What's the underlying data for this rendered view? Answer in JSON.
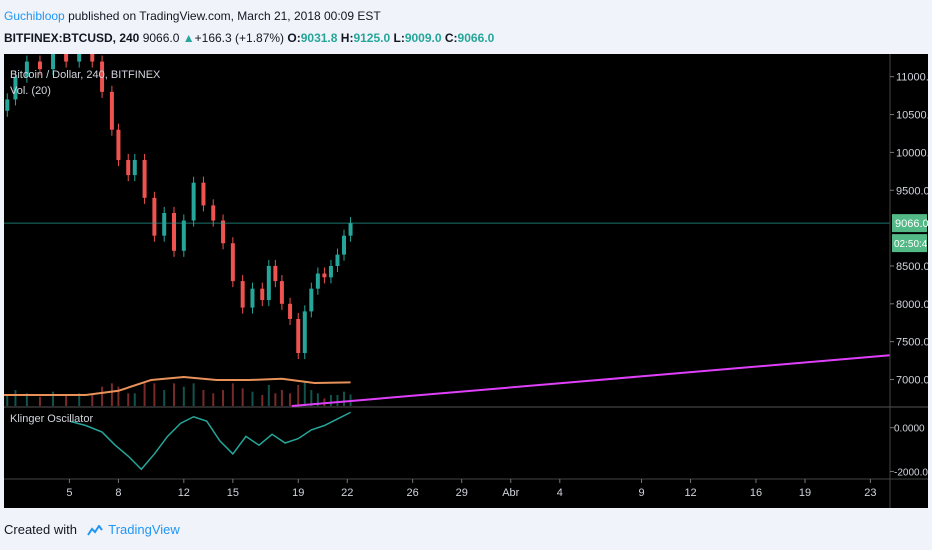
{
  "header": {
    "author": "Guchibloop",
    "published_text": "published on TradingView.com, March 21, 2018 00:09 EST",
    "symbol": "BITFINEX:BTCUSD, 240",
    "last": "9066.0",
    "change_arrow": "▲",
    "change": "+166.3 (+1.87%)",
    "o_label": "O:",
    "o": "9031.8",
    "h_label": "H:",
    "h": "9125.0",
    "l_label": "L:",
    "l": "9009.0",
    "c_label": "C:",
    "c": "9066.0"
  },
  "chart_data": [
    {
      "type": "candlestick",
      "title": "Bitcoin / Dollar, 240, BITFINEX",
      "indicator_label": "Vol. (20)",
      "y_ticks": [
        7000,
        7500,
        8000,
        8500,
        9000,
        9500,
        10000,
        10500,
        11000
      ],
      "y_tick_labels": [
        "7000.0",
        "7500.0",
        "8000.0",
        "8500.0",
        "9000.0",
        "9500.0",
        "10000.0",
        "10500.0",
        "11000.0"
      ],
      "ylim": [
        6650,
        11300
      ],
      "last_price": 9066.0,
      "last_price_label": "9066.0",
      "countdown_label": "02:50:47",
      "x_tick_labels": [
        "5",
        "8",
        "12",
        "15",
        "19",
        "22",
        "26",
        "29",
        "Abr",
        "4",
        "9",
        "12",
        "16",
        "19",
        "23"
      ],
      "x_tick_days": [
        5,
        8,
        12,
        15,
        19,
        22,
        26,
        29,
        32,
        35,
        40,
        43,
        47,
        50,
        54
      ],
      "xlim_days": [
        1.0,
        55.2
      ],
      "closes": [
        {
          "day": 1.2,
          "close": 10700
        },
        {
          "day": 1.7,
          "close": 11000
        },
        {
          "day": 2.4,
          "close": 11200
        },
        {
          "day": 3.2,
          "close": 11100
        },
        {
          "day": 4.0,
          "close": 11350
        },
        {
          "day": 4.8,
          "close": 11200
        },
        {
          "day": 5.6,
          "close": 11400
        },
        {
          "day": 6.4,
          "close": 11200
        },
        {
          "day": 7.0,
          "close": 10800
        },
        {
          "day": 7.6,
          "close": 10300
        },
        {
          "day": 8.0,
          "close": 9900
        },
        {
          "day": 8.6,
          "close": 9700
        },
        {
          "day": 9.0,
          "close": 9900
        },
        {
          "day": 9.6,
          "close": 9400
        },
        {
          "day": 10.2,
          "close": 8900
        },
        {
          "day": 10.8,
          "close": 9200
        },
        {
          "day": 11.4,
          "close": 8700
        },
        {
          "day": 12.0,
          "close": 9100
        },
        {
          "day": 12.6,
          "close": 9600
        },
        {
          "day": 13.2,
          "close": 9300
        },
        {
          "day": 13.8,
          "close": 9100
        },
        {
          "day": 14.4,
          "close": 8800
        },
        {
          "day": 15.0,
          "close": 8300
        },
        {
          "day": 15.6,
          "close": 7950
        },
        {
          "day": 16.2,
          "close": 8200
        },
        {
          "day": 16.8,
          "close": 8050
        },
        {
          "day": 17.2,
          "close": 8500
        },
        {
          "day": 17.6,
          "close": 8300
        },
        {
          "day": 18.0,
          "close": 8000
        },
        {
          "day": 18.5,
          "close": 7800
        },
        {
          "day": 19.0,
          "close": 7350
        },
        {
          "day": 19.4,
          "close": 7900
        },
        {
          "day": 19.8,
          "close": 8200
        },
        {
          "day": 20.2,
          "close": 8400
        },
        {
          "day": 20.6,
          "close": 8350
        },
        {
          "day": 21.0,
          "close": 8500
        },
        {
          "day": 21.4,
          "close": 8650
        },
        {
          "day": 21.8,
          "close": 8900
        },
        {
          "day": 22.2,
          "close": 9066
        }
      ],
      "volume_ma": [
        {
          "day": 1.0,
          "value": 0.05
        },
        {
          "day": 6.0,
          "value": 0.05
        },
        {
          "day": 8.0,
          "value": 0.12
        },
        {
          "day": 10.0,
          "value": 0.3
        },
        {
          "day": 12.0,
          "value": 0.35
        },
        {
          "day": 14.0,
          "value": 0.3
        },
        {
          "day": 16.0,
          "value": 0.3
        },
        {
          "day": 18.0,
          "value": 0.32
        },
        {
          "day": 20.0,
          "value": 0.25
        },
        {
          "day": 22.2,
          "value": 0.26
        }
      ],
      "trendline": {
        "color": "#e040fb",
        "start": {
          "day": 18.6,
          "price": 6650
        },
        "end": {
          "day": 55.2,
          "price": 7320
        }
      },
      "grid": false
    },
    {
      "type": "line",
      "title": "Klinger Oscillator",
      "y_ticks": [
        0,
        -2000
      ],
      "y_tick_labels": [
        "0.0000",
        "-2000.00"
      ],
      "ylim": [
        -2300,
        900
      ],
      "series": [
        {
          "color": "#26a69a",
          "points": [
            {
              "day": 5.0,
              "value": 300
            },
            {
              "day": 6.0,
              "value": 100
            },
            {
              "day": 7.0,
              "value": -200
            },
            {
              "day": 7.8,
              "value": -800
            },
            {
              "day": 8.6,
              "value": -1300
            },
            {
              "day": 9.4,
              "value": -1900
            },
            {
              "day": 10.2,
              "value": -1200
            },
            {
              "day": 11.0,
              "value": -400
            },
            {
              "day": 11.8,
              "value": 200
            },
            {
              "day": 12.6,
              "value": 500
            },
            {
              "day": 13.4,
              "value": 300
            },
            {
              "day": 14.2,
              "value": -600
            },
            {
              "day": 15.0,
              "value": -1200
            },
            {
              "day": 15.8,
              "value": -400
            },
            {
              "day": 16.6,
              "value": -800
            },
            {
              "day": 17.4,
              "value": -300
            },
            {
              "day": 18.2,
              "value": -700
            },
            {
              "day": 19.0,
              "value": -500
            },
            {
              "day": 19.8,
              "value": -100
            },
            {
              "day": 20.6,
              "value": 100
            },
            {
              "day": 21.4,
              "value": 400
            },
            {
              "day": 22.2,
              "value": 700
            }
          ]
        }
      ]
    }
  ],
  "footer": {
    "created_with": "Created with",
    "brand": "TradingView"
  },
  "colors": {
    "up": "#26a69a",
    "down": "#ef5350",
    "volume_ma": "#e8925a",
    "axis_text": "#d1d4dc",
    "price_badge": "#53b987"
  }
}
